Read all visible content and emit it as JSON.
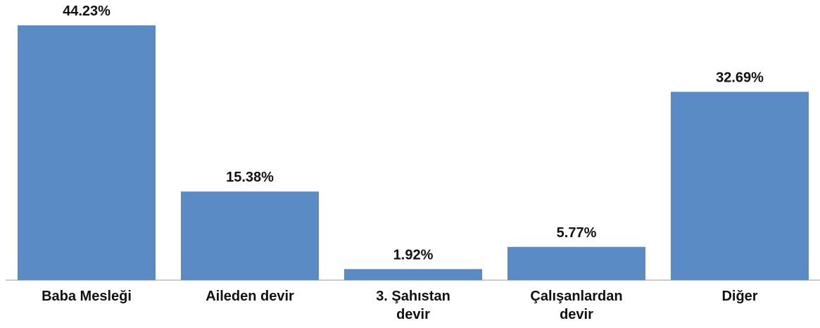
{
  "chart_data": {
    "type": "bar",
    "categories": [
      "Baba Mesleği",
      "Aileden devir",
      "3. Şahıstan\ndevir",
      "Çalışanlardan\ndevir",
      "Diğer"
    ],
    "values": [
      44.23,
      15.38,
      1.92,
      5.77,
      32.69
    ],
    "value_labels": [
      "44.23%",
      "15.38%",
      "1.92%",
      "5.77%",
      "32.69%"
    ],
    "color": "#5b8bc4"
  }
}
